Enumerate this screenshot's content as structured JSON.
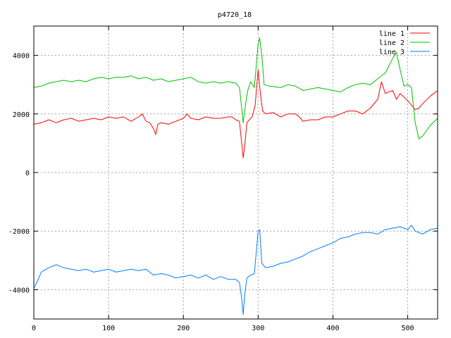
{
  "chart_data": {
    "type": "line",
    "title": "p4720_18",
    "xlabel": "",
    "ylabel": "",
    "xlim": [
      0,
      540
    ],
    "ylim": [
      -5000,
      5000
    ],
    "xticks": [
      0,
      100,
      200,
      300,
      400,
      500
    ],
    "yticks": [
      -4000,
      -2000,
      0,
      2000,
      4000
    ],
    "grid": true,
    "legend_position": "top-right",
    "series": [
      {
        "name": "line 1",
        "color": "#ff0000",
        "points": [
          [
            0,
            1650
          ],
          [
            10,
            1700
          ],
          [
            20,
            1800
          ],
          [
            30,
            1700
          ],
          [
            40,
            1800
          ],
          [
            50,
            1850
          ],
          [
            60,
            1750
          ],
          [
            70,
            1800
          ],
          [
            80,
            1850
          ],
          [
            90,
            1800
          ],
          [
            100,
            1900
          ],
          [
            110,
            1850
          ],
          [
            120,
            1900
          ],
          [
            130,
            1750
          ],
          [
            140,
            1900
          ],
          [
            145,
            2000
          ],
          [
            150,
            1750
          ],
          [
            155,
            1700
          ],
          [
            160,
            1500
          ],
          [
            163,
            1300
          ],
          [
            166,
            1650
          ],
          [
            170,
            1700
          ],
          [
            180,
            1650
          ],
          [
            190,
            1750
          ],
          [
            200,
            1850
          ],
          [
            205,
            2000
          ],
          [
            210,
            1850
          ],
          [
            220,
            1800
          ],
          [
            230,
            1900
          ],
          [
            240,
            1850
          ],
          [
            250,
            1850
          ],
          [
            260,
            1900
          ],
          [
            265,
            1900
          ],
          [
            270,
            1800
          ],
          [
            275,
            1750
          ],
          [
            278,
            1000
          ],
          [
            280,
            500
          ],
          [
            282,
            900
          ],
          [
            285,
            1700
          ],
          [
            288,
            1800
          ],
          [
            292,
            1900
          ],
          [
            296,
            2300
          ],
          [
            300,
            3500
          ],
          [
            303,
            2700
          ],
          [
            306,
            2100
          ],
          [
            310,
            2000
          ],
          [
            320,
            2050
          ],
          [
            330,
            1900
          ],
          [
            340,
            2000
          ],
          [
            350,
            2000
          ],
          [
            355,
            1900
          ],
          [
            360,
            1750
          ],
          [
            370,
            1800
          ],
          [
            380,
            1800
          ],
          [
            390,
            1900
          ],
          [
            400,
            1900
          ],
          [
            410,
            2000
          ],
          [
            420,
            2100
          ],
          [
            430,
            2100
          ],
          [
            440,
            2000
          ],
          [
            450,
            2200
          ],
          [
            460,
            2500
          ],
          [
            465,
            3100
          ],
          [
            470,
            2700
          ],
          [
            480,
            2800
          ],
          [
            485,
            2500
          ],
          [
            490,
            2700
          ],
          [
            500,
            2450
          ],
          [
            505,
            2300
          ],
          [
            510,
            2150
          ],
          [
            515,
            2200
          ],
          [
            520,
            2350
          ],
          [
            530,
            2600
          ],
          [
            535,
            2700
          ],
          [
            540,
            2800
          ]
        ]
      },
      {
        "name": "line 2",
        "color": "#00c000",
        "points": [
          [
            0,
            2900
          ],
          [
            10,
            2950
          ],
          [
            20,
            3050
          ],
          [
            30,
            3100
          ],
          [
            40,
            3150
          ],
          [
            50,
            3100
          ],
          [
            60,
            3150
          ],
          [
            70,
            3100
          ],
          [
            80,
            3200
          ],
          [
            90,
            3250
          ],
          [
            100,
            3200
          ],
          [
            110,
            3250
          ],
          [
            120,
            3250
          ],
          [
            130,
            3300
          ],
          [
            140,
            3200
          ],
          [
            150,
            3250
          ],
          [
            160,
            3150
          ],
          [
            170,
            3200
          ],
          [
            180,
            3100
          ],
          [
            190,
            3150
          ],
          [
            200,
            3200
          ],
          [
            210,
            3250
          ],
          [
            220,
            3100
          ],
          [
            230,
            3050
          ],
          [
            240,
            3100
          ],
          [
            250,
            3050
          ],
          [
            260,
            3100
          ],
          [
            270,
            3050
          ],
          [
            275,
            2900
          ],
          [
            278,
            2200
          ],
          [
            280,
            1700
          ],
          [
            283,
            2300
          ],
          [
            286,
            2800
          ],
          [
            290,
            3100
          ],
          [
            295,
            2900
          ],
          [
            300,
            4400
          ],
          [
            302,
            4600
          ],
          [
            305,
            4000
          ],
          [
            308,
            3000
          ],
          [
            315,
            2950
          ],
          [
            330,
            2900
          ],
          [
            340,
            3000
          ],
          [
            350,
            2950
          ],
          [
            360,
            2800
          ],
          [
            370,
            2850
          ],
          [
            380,
            2900
          ],
          [
            390,
            2850
          ],
          [
            400,
            2800
          ],
          [
            410,
            2750
          ],
          [
            420,
            2900
          ],
          [
            430,
            3000
          ],
          [
            440,
            3050
          ],
          [
            450,
            3000
          ],
          [
            460,
            3200
          ],
          [
            470,
            3400
          ],
          [
            480,
            3900
          ],
          [
            485,
            4100
          ],
          [
            490,
            3500
          ],
          [
            495,
            2950
          ],
          [
            500,
            3000
          ],
          [
            505,
            2900
          ],
          [
            510,
            1700
          ],
          [
            515,
            1150
          ],
          [
            520,
            1250
          ],
          [
            530,
            1600
          ],
          [
            540,
            1850
          ]
        ]
      },
      {
        "name": "line 3",
        "color": "#0080ff",
        "points": [
          [
            0,
            -3950
          ],
          [
            5,
            -3700
          ],
          [
            10,
            -3400
          ],
          [
            20,
            -3250
          ],
          [
            30,
            -3150
          ],
          [
            40,
            -3250
          ],
          [
            50,
            -3300
          ],
          [
            60,
            -3350
          ],
          [
            70,
            -3300
          ],
          [
            80,
            -3400
          ],
          [
            90,
            -3350
          ],
          [
            100,
            -3300
          ],
          [
            110,
            -3400
          ],
          [
            120,
            -3350
          ],
          [
            130,
            -3300
          ],
          [
            140,
            -3350
          ],
          [
            150,
            -3300
          ],
          [
            160,
            -3500
          ],
          [
            170,
            -3450
          ],
          [
            180,
            -3500
          ],
          [
            190,
            -3600
          ],
          [
            200,
            -3550
          ],
          [
            210,
            -3500
          ],
          [
            220,
            -3600
          ],
          [
            230,
            -3500
          ],
          [
            240,
            -3650
          ],
          [
            250,
            -3550
          ],
          [
            260,
            -3650
          ],
          [
            270,
            -3650
          ],
          [
            275,
            -3750
          ],
          [
            278,
            -4300
          ],
          [
            280,
            -4850
          ],
          [
            282,
            -4200
          ],
          [
            285,
            -3600
          ],
          [
            290,
            -3500
          ],
          [
            295,
            -3450
          ],
          [
            300,
            -2000
          ],
          [
            302,
            -1950
          ],
          [
            305,
            -3100
          ],
          [
            310,
            -3250
          ],
          [
            320,
            -3200
          ],
          [
            330,
            -3100
          ],
          [
            340,
            -3050
          ],
          [
            350,
            -2950
          ],
          [
            360,
            -2850
          ],
          [
            370,
            -2700
          ],
          [
            380,
            -2600
          ],
          [
            390,
            -2500
          ],
          [
            400,
            -2400
          ],
          [
            410,
            -2250
          ],
          [
            420,
            -2200
          ],
          [
            430,
            -2100
          ],
          [
            440,
            -2050
          ],
          [
            450,
            -2050
          ],
          [
            460,
            -2100
          ],
          [
            470,
            -1950
          ],
          [
            480,
            -1900
          ],
          [
            490,
            -1850
          ],
          [
            500,
            -1950
          ],
          [
            505,
            -1800
          ],
          [
            510,
            -2000
          ],
          [
            520,
            -2100
          ],
          [
            530,
            -1950
          ],
          [
            540,
            -1900
          ]
        ]
      }
    ]
  }
}
